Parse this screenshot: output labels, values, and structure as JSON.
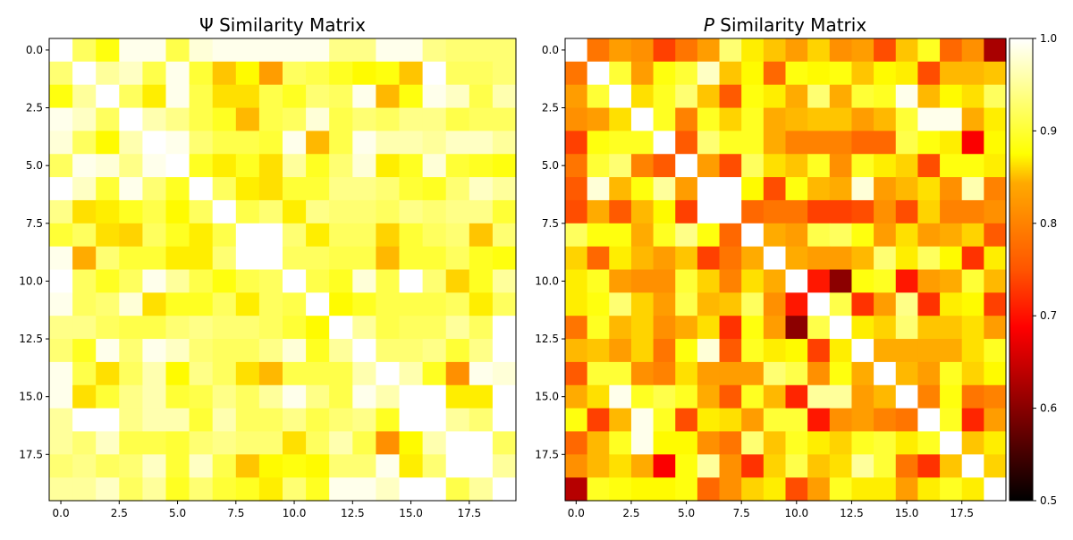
{
  "chart_data": [
    {
      "type": "heatmap",
      "title_symbol": "Ψ",
      "title_text": "Similarity Matrix",
      "size": 20,
      "colormap": "hot",
      "vmin": 0.5,
      "vmax": 1.0,
      "xticks": [
        "0.0",
        "2.5",
        "5.0",
        "7.5",
        "10.0",
        "12.5",
        "15.0",
        "17.5"
      ],
      "yticks": [
        "0.0",
        "2.5",
        "5.0",
        "7.5",
        "10.0",
        "12.5",
        "15.0",
        "17.5"
      ],
      "values": [
        [
          1.0,
          0.92,
          0.88,
          0.99,
          0.99,
          0.91,
          0.98,
          0.99,
          0.99,
          0.99,
          0.99,
          0.99,
          0.94,
          0.94,
          0.99,
          0.99,
          0.94,
          0.93,
          0.93,
          0.93
        ],
        [
          0.93,
          1.0,
          0.95,
          0.97,
          0.91,
          0.99,
          0.9,
          0.83,
          0.87,
          0.8,
          0.92,
          0.91,
          0.89,
          0.87,
          0.88,
          0.83,
          1.0,
          0.92,
          0.92,
          0.93
        ],
        [
          0.88,
          0.95,
          1.0,
          0.92,
          0.86,
          0.99,
          0.91,
          0.85,
          0.85,
          0.91,
          0.89,
          0.93,
          0.92,
          0.99,
          0.82,
          0.88,
          0.99,
          0.97,
          0.91,
          0.96
        ],
        [
          0.99,
          0.97,
          0.92,
          1.0,
          0.96,
          0.94,
          0.91,
          0.89,
          0.82,
          0.91,
          0.92,
          0.98,
          0.91,
          0.93,
          0.92,
          0.94,
          0.94,
          0.91,
          0.92,
          0.92
        ],
        [
          0.98,
          0.92,
          0.87,
          0.96,
          1.0,
          0.99,
          0.93,
          0.91,
          0.91,
          0.9,
          0.99,
          0.82,
          0.91,
          0.99,
          0.96,
          0.96,
          0.95,
          0.97,
          0.97,
          0.95
        ],
        [
          0.92,
          0.99,
          0.98,
          0.94,
          0.99,
          1.0,
          0.89,
          0.86,
          0.89,
          0.85,
          0.95,
          0.89,
          0.93,
          0.98,
          0.86,
          0.89,
          0.98,
          0.9,
          0.89,
          0.88
        ],
        [
          1.0,
          0.97,
          0.9,
          0.99,
          0.93,
          0.89,
          1.0,
          0.92,
          0.86,
          0.85,
          0.9,
          0.9,
          0.94,
          0.94,
          0.93,
          0.9,
          0.89,
          0.93,
          0.97,
          0.95
        ],
        [
          0.94,
          0.85,
          0.86,
          0.89,
          0.91,
          0.87,
          0.92,
          1.0,
          0.91,
          0.93,
          0.86,
          0.94,
          0.93,
          0.93,
          0.92,
          0.94,
          0.93,
          0.94,
          0.94,
          0.9
        ],
        [
          0.9,
          0.92,
          0.85,
          0.84,
          0.92,
          0.89,
          0.86,
          0.91,
          1.0,
          1.0,
          0.93,
          0.86,
          0.92,
          0.92,
          0.84,
          0.9,
          0.92,
          0.93,
          0.83,
          0.93
        ],
        [
          0.99,
          0.81,
          0.93,
          0.9,
          0.9,
          0.86,
          0.86,
          0.93,
          1.0,
          1.0,
          0.92,
          0.92,
          0.91,
          0.91,
          0.82,
          0.9,
          0.9,
          0.92,
          0.89,
          0.88
        ],
        [
          1.0,
          0.92,
          0.89,
          0.92,
          0.99,
          0.95,
          0.91,
          0.88,
          0.91,
          0.92,
          1.0,
          0.91,
          0.89,
          0.98,
          0.91,
          1.0,
          0.93,
          0.84,
          0.89,
          0.95
        ],
        [
          0.99,
          0.92,
          0.93,
          0.98,
          0.85,
          0.89,
          0.89,
          0.92,
          0.86,
          0.92,
          0.91,
          1.0,
          0.87,
          0.89,
          0.91,
          0.91,
          0.91,
          0.92,
          0.86,
          0.92
        ],
        [
          0.94,
          0.94,
          0.92,
          0.91,
          0.91,
          0.93,
          0.94,
          0.93,
          0.93,
          0.92,
          0.9,
          0.87,
          1.0,
          0.95,
          0.91,
          0.92,
          0.92,
          0.95,
          0.92,
          1.0
        ],
        [
          0.93,
          0.89,
          0.99,
          0.93,
          0.99,
          0.97,
          0.93,
          0.92,
          0.92,
          0.94,
          0.98,
          0.89,
          0.95,
          1.0,
          0.93,
          0.93,
          0.94,
          0.9,
          0.94,
          1.0
        ],
        [
          0.99,
          0.91,
          0.85,
          0.92,
          0.96,
          0.87,
          0.94,
          0.92,
          0.85,
          0.82,
          0.91,
          0.91,
          0.91,
          0.96,
          1.0,
          0.96,
          0.89,
          0.79,
          0.99,
          0.98
        ],
        [
          0.99,
          0.85,
          0.9,
          0.94,
          0.96,
          0.9,
          0.91,
          0.94,
          0.92,
          0.95,
          0.99,
          0.94,
          0.91,
          0.99,
          0.96,
          1.0,
          1.0,
          0.86,
          0.86,
          1.0
        ],
        [
          0.95,
          1.0,
          1.0,
          0.94,
          0.96,
          0.96,
          0.9,
          0.96,
          0.92,
          0.92,
          0.94,
          0.91,
          0.93,
          0.94,
          0.89,
          1.0,
          1.0,
          0.95,
          0.93,
          1.0
        ],
        [
          0.95,
          0.93,
          0.97,
          0.91,
          0.91,
          0.9,
          0.93,
          0.94,
          0.93,
          0.93,
          0.85,
          0.92,
          0.96,
          0.91,
          0.79,
          0.87,
          0.96,
          1.0,
          1.0,
          0.92
        ],
        [
          0.93,
          0.94,
          0.92,
          0.93,
          0.97,
          0.9,
          0.97,
          0.91,
          0.83,
          0.87,
          0.88,
          0.87,
          0.93,
          0.93,
          0.99,
          0.86,
          0.93,
          1.0,
          1.0,
          0.95
        ],
        [
          0.95,
          0.95,
          0.97,
          0.92,
          0.95,
          0.89,
          0.93,
          0.9,
          0.89,
          0.86,
          0.93,
          0.89,
          0.99,
          0.99,
          0.97,
          1.0,
          1.0,
          0.91,
          0.95,
          1.0
        ]
      ]
    },
    {
      "type": "heatmap",
      "title_symbol": "P",
      "title_text": "Similarity Matrix",
      "size": 20,
      "colormap": "hot",
      "vmin": 0.5,
      "vmax": 1.0,
      "xticks": [
        "0.0",
        "2.5",
        "5.0",
        "7.5",
        "10.0",
        "12.5",
        "15.0",
        "17.5"
      ],
      "yticks": [
        "0.0",
        "2.5",
        "5.0",
        "7.5",
        "10.0",
        "12.5",
        "15.0",
        "17.5"
      ],
      "colorbar_ticks": [
        "0.5",
        "0.6",
        "0.7",
        "0.8",
        "0.9",
        "1.0"
      ],
      "values": [
        [
          1.0,
          0.77,
          0.8,
          0.79,
          0.73,
          0.77,
          0.8,
          0.93,
          0.86,
          0.83,
          0.8,
          0.84,
          0.79,
          0.8,
          0.74,
          0.83,
          0.89,
          0.76,
          0.79,
          0.62
        ],
        [
          0.77,
          1.0,
          0.9,
          0.8,
          0.88,
          0.9,
          0.97,
          0.83,
          0.87,
          0.76,
          0.88,
          0.87,
          0.88,
          0.83,
          0.87,
          0.86,
          0.74,
          0.82,
          0.82,
          0.83
        ],
        [
          0.8,
          0.9,
          1.0,
          0.85,
          0.89,
          0.93,
          0.83,
          0.75,
          0.88,
          0.86,
          0.81,
          0.93,
          0.81,
          0.9,
          0.89,
          0.99,
          0.82,
          0.87,
          0.85,
          0.92
        ],
        [
          0.79,
          0.8,
          0.85,
          1.0,
          0.89,
          0.78,
          0.89,
          0.84,
          0.89,
          0.81,
          0.82,
          0.83,
          0.83,
          0.8,
          0.82,
          0.9,
          0.99,
          0.99,
          0.81,
          0.86
        ],
        [
          0.73,
          0.88,
          0.89,
          0.89,
          1.0,
          0.75,
          0.93,
          0.89,
          0.89,
          0.81,
          0.78,
          0.78,
          0.78,
          0.76,
          0.76,
          0.91,
          0.88,
          0.86,
          0.68,
          0.87
        ],
        [
          0.77,
          0.9,
          0.93,
          0.78,
          0.75,
          1.0,
          0.8,
          0.74,
          0.92,
          0.85,
          0.83,
          0.89,
          0.79,
          0.89,
          0.86,
          0.84,
          0.74,
          0.88,
          0.88,
          0.86
        ],
        [
          0.75,
          0.98,
          0.82,
          0.88,
          0.95,
          0.8,
          1.0,
          1.0,
          0.87,
          0.74,
          0.88,
          0.82,
          0.81,
          0.98,
          0.8,
          0.82,
          0.85,
          0.79,
          0.96,
          0.78
        ],
        [
          0.74,
          0.81,
          0.75,
          0.82,
          0.87,
          0.73,
          1.0,
          1.0,
          0.76,
          0.77,
          0.77,
          0.73,
          0.73,
          0.74,
          0.79,
          0.74,
          0.84,
          0.78,
          0.78,
          0.79
        ],
        [
          0.92,
          0.88,
          0.88,
          0.81,
          0.89,
          0.94,
          0.88,
          0.76,
          1.0,
          0.81,
          0.8,
          0.91,
          0.92,
          0.88,
          0.8,
          0.85,
          0.8,
          0.81,
          0.84,
          0.75
        ],
        [
          0.84,
          0.76,
          0.86,
          0.82,
          0.8,
          0.83,
          0.73,
          0.77,
          0.81,
          1.0,
          0.81,
          0.8,
          0.8,
          0.82,
          0.93,
          0.86,
          0.92,
          0.87,
          0.72,
          0.86
        ],
        [
          0.86,
          0.89,
          0.8,
          0.79,
          0.79,
          0.9,
          0.84,
          0.78,
          0.85,
          0.81,
          1.0,
          0.7,
          0.6,
          0.88,
          0.89,
          0.7,
          0.8,
          0.81,
          0.9,
          0.82
        ],
        [
          0.86,
          0.88,
          0.93,
          0.84,
          0.8,
          0.91,
          0.82,
          0.83,
          0.92,
          0.79,
          0.7,
          1.0,
          0.91,
          0.72,
          0.8,
          0.94,
          0.72,
          0.86,
          0.87,
          0.73
        ],
        [
          0.77,
          0.89,
          0.82,
          0.84,
          0.79,
          0.81,
          0.85,
          0.72,
          0.88,
          0.8,
          0.6,
          0.91,
          1.0,
          0.86,
          0.84,
          0.93,
          0.83,
          0.83,
          0.85,
          0.8
        ],
        [
          0.82,
          0.83,
          0.8,
          0.84,
          0.77,
          0.88,
          0.98,
          0.75,
          0.89,
          0.86,
          0.87,
          0.73,
          0.86,
          1.0,
          0.81,
          0.81,
          0.81,
          0.81,
          0.85,
          0.89
        ],
        [
          0.75,
          0.9,
          0.9,
          0.79,
          0.78,
          0.85,
          0.8,
          0.8,
          0.8,
          0.93,
          0.91,
          0.79,
          0.88,
          0.81,
          1.0,
          0.82,
          0.8,
          0.89,
          0.84,
          0.87
        ],
        [
          0.81,
          0.85,
          0.99,
          0.89,
          0.91,
          0.89,
          0.81,
          0.75,
          0.89,
          0.82,
          0.71,
          0.95,
          0.95,
          0.8,
          0.82,
          1.0,
          0.78,
          0.88,
          0.77,
          0.78
        ],
        [
          0.88,
          0.73,
          0.82,
          0.99,
          0.89,
          0.74,
          0.86,
          0.85,
          0.8,
          0.9,
          0.9,
          0.7,
          0.79,
          0.8,
          0.78,
          0.77,
          1.0,
          0.89,
          0.71,
          0.8
        ],
        [
          0.76,
          0.82,
          0.89,
          0.99,
          0.87,
          0.87,
          0.79,
          0.77,
          0.93,
          0.83,
          0.89,
          0.86,
          0.84,
          0.89,
          0.9,
          0.86,
          0.89,
          1.0,
          0.83,
          0.86
        ],
        [
          0.79,
          0.82,
          0.85,
          0.81,
          0.68,
          0.88,
          0.95,
          0.79,
          0.72,
          0.84,
          0.91,
          0.83,
          0.85,
          0.95,
          0.9,
          0.77,
          0.72,
          0.83,
          1.0,
          0.84
        ],
        [
          0.63,
          0.89,
          0.88,
          0.87,
          0.87,
          0.88,
          0.76,
          0.79,
          0.84,
          0.86,
          0.74,
          0.8,
          0.89,
          0.86,
          0.86,
          0.8,
          0.86,
          0.89,
          0.86,
          1.0
        ]
      ]
    }
  ]
}
